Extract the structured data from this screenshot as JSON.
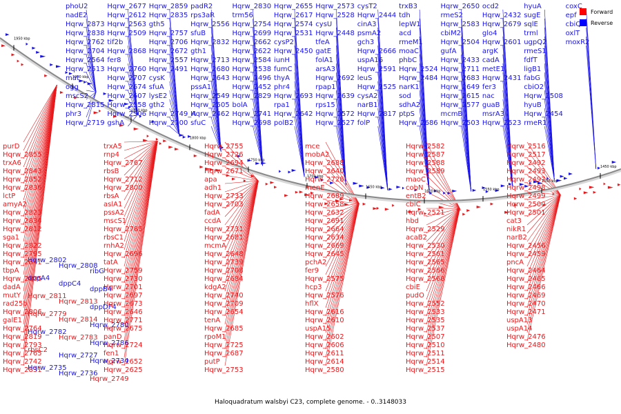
{
  "diagram": {
    "caption": "Haloquadratum walsbyi C23, complete genome. - 0..3148033",
    "legend": [
      {
        "label": "Forward",
        "color": "#ff0000"
      },
      {
        "label": "Reverse",
        "color": "#0000ff"
      }
    ],
    "colors": {
      "forward": "#e8191c",
      "reverse": "#1a14e8",
      "backbone": "#888888"
    },
    "ticks": [
      "1950 kbp",
      "1900 kbp",
      "1850 kbp",
      "1800 kbp",
      "1750 kbp",
      "1700 kbp",
      "1650 kbp",
      "1600 kbp",
      "1550 kbp",
      "1500 kbp",
      "1450 kbp"
    ],
    "reverse_labels": [
      "phoU2",
      "nadE2",
      "Hqrw_2873",
      "Hqrw_2838",
      "Hqrw_2762",
      "Hqrw_2704",
      "Hqrw_2564",
      "Hqrw_2513",
      "mat",
      "ogg",
      "mscS2",
      "Hqrw_2815",
      "phr3",
      "Hqrw_2719",
      "Hqrw_2677",
      "Hqrw_2612",
      "Hqrw_2563",
      "Hqrw_2509",
      "tif2b",
      "Hqrw_2868",
      "fer8",
      "Hqrw_2760",
      "Hqrw_2707",
      "Hqrw_2674",
      "Hqrw_2607",
      "Hqrw_2558",
      "Hqrw_2506",
      "gshA",
      "Hqrw_2859",
      "Hqrw_2835",
      "gth5",
      "Hqrw_2757",
      "Hqrw_2706",
      "Hqrw_2672",
      "Hqrw_2557",
      "Hqrw_2491",
      "cysK",
      "sfuA",
      "lysE2",
      "gth2",
      "Hqrw_2749_A",
      "Hqrw_2700",
      "padR2",
      "rps3aR",
      "Hqrw_2556",
      "sfuB",
      "Hqrw_2832",
      "gth1",
      "Hqrw_2713",
      "Hqrw_2680",
      "Hqrw_2643",
      "pssA1",
      "Hqrw_2549",
      "Hqrw_2505",
      "Hqrw_2462",
      "sfuC",
      "Hqrw_2830",
      "trm56",
      "Hqrw_2754",
      "Hqrw_2699",
      "Hqrw_2662",
      "Hqrw_2622",
      "Hqrw_2584",
      "Hqrw_2538",
      "Hqrw_2496",
      "Hqrw_2452",
      "Hqrw_2829",
      "bolA",
      "Hqrw_2741",
      "Hqrw_2698",
      "Hqrw_2655",
      "Hqrw_2617",
      "Hqrw_2574",
      "Hqrw_2531",
      "cysP2",
      "Hqrw_2450",
      "iunH",
      "fumC",
      "thyA",
      "phr4",
      "Hqrw_2693",
      "rpa1",
      "Hqrw_2642",
      "polB2",
      "Hqrw_2573",
      "Hqrw_2528",
      "cysU",
      "Hqrw_2448",
      "tfeA",
      "gatE",
      "folA1",
      "arsA3",
      "Hqrw_2692",
      "rpap1",
      "Hqrw_2639",
      "rps15",
      "Hqrw_2572",
      "Hqrw_2527",
      "cysT2",
      "Hqrw_2444",
      "cinA3",
      "psmA2",
      "gch3",
      "Hqrw_2666",
      "uspA16",
      "Hqrw_2591",
      "leuS",
      "Hqrw_2525",
      "cysA2",
      "narB1",
      "Hqrw_2817",
      "folP",
      "trxB3",
      "tdh",
      "lepW1",
      "acd",
      "rmeM1",
      "moaC",
      "phbC",
      "Hqrw_2524",
      "Hqrw_2484",
      "narK1",
      "sod",
      "sdhA2",
      "ptpS",
      "Hqrw_2686",
      "Hqrw_2650",
      "rmeS2",
      "Hqrw_2583",
      "cbiM2",
      "Hqrw_2504",
      "gufA",
      "Hqrw_2433",
      "Hqrw_2711",
      "Hqrw_2683",
      "Hqrw_2649",
      "Hqrw_2615",
      "Hqrw_2577",
      "mcmB",
      "Hqrw_2503",
      "ocd2",
      "Hqrw_2432",
      "Hqrw_2679",
      "glo4",
      "Hqrw_2601",
      "argK",
      "cadA",
      "metE1",
      "Hqrw_2431",
      "fer3",
      "nac",
      "guaB",
      "msrA3",
      "Hqrw_2523",
      "hyuA",
      "sugE",
      "sqlE",
      "trml",
      "ugpQ2",
      "rmeS1",
      "fdfT",
      "ligB1",
      "fabG",
      "cbiO2",
      "Hqrw_2508",
      "hyuB",
      "Hqrw_2454",
      "rmeR1",
      "coxC",
      "epf",
      "cbiQ2",
      "oxlT",
      "moxR2"
    ],
    "forward_labels": [
      "purD",
      "Hqrw_2855",
      "trxA6",
      "Hqrw_2843",
      "Hqrw_2852",
      "Hqrw_2836",
      "lctP",
      "amyA2",
      "Hqrw_2823",
      "Hqrw_2834",
      "Hqrw_2812",
      "sga1",
      "Hqrw_2822",
      "Hqrw_2795",
      "Hqrw_2841",
      "tbpA",
      "Hqrw_2805",
      "dadA",
      "mutY",
      "rad25b",
      "Hqrw_2806",
      "galE1",
      "Hqrw_2764",
      "Hqrw_2819",
      "Hqrw_2793",
      "Hqrw_2765",
      "Hqrw_2742",
      "Hqrw_2831",
      "trxA5",
      "rnp4",
      "Hqrw_2767",
      "rbsB",
      "Hqrw_2712",
      "Hqrw_2800",
      "rbsA",
      "aslA1",
      "pssA2",
      "mscS1",
      "Hqrw_2785",
      "rbsC1",
      "rnhA2",
      "Hqrw_2696",
      "tatA",
      "Hqrw_2759",
      "Hqrw_2730",
      "Hqrw_2701",
      "Hqrw_2697",
      "Hqrw_2673",
      "Hqrw_2646",
      "Hqrw_2771",
      "Hqrw_2675",
      "panD",
      "Hqrw_2724",
      "fen1",
      "Hqrw_2652",
      "Hqrw_2625",
      "Hqrw_2755",
      "Hqrw_2726",
      "Hqrw_2694",
      "Hqrw_2671",
      "apa",
      "adh1",
      "Hqrw_2733",
      "Hqrw_2703",
      "fadA",
      "ccdA",
      "Hqrw_2731",
      "Hqrw_2681",
      "mcmA",
      "Hqrw_2648",
      "Hqrw_2739",
      "Hqrw_2708",
      "Hqrw_2684",
      "kdgA2",
      "Hqrw_2740",
      "Hqrw_2709",
      "Hqrw_2654",
      "tenA",
      "Hqrw_2685",
      "rpoM1",
      "Hqrw_2725",
      "Hqrw_2687",
      "putP",
      "Hqrw_2753",
      "mce",
      "mobA2",
      "Hqrw_2688",
      "Hqrw_2640",
      "Hqrw_2728",
      "menE",
      "Hqrw_2689",
      "Hqrw_2658",
      "Hqrw_2632",
      "Hqrw_2691",
      "Hqrw_2664",
      "Hqrw_2634",
      "Hqrw_2669",
      "Hqrw_2645",
      "pchA2",
      "fer9",
      "Hqrw_2575",
      "hcp3",
      "Hqrw_2576",
      "hflX",
      "Hqrw_2616",
      "Hqrw_2610",
      "uspA15",
      "Hqrw_2602",
      "Hqrw_2606",
      "Hqrw_2611",
      "Hqrw_2614",
      "Hqrw_2580",
      "Hqrw_2582",
      "Hqrw_2587",
      "Hqrw_2588",
      "Hqrw_2589",
      "maoC",
      "cobN",
      "entB2",
      "cbiC",
      "Hqrw_2521",
      "hbd",
      "Hqrw_2529",
      "acaB2",
      "Hqrw_2530",
      "Hqrw_2561",
      "Hqrw_2565",
      "Hqrw_2566",
      "Hqrw_2568",
      "cbiE",
      "pudO",
      "Hqrw_2552",
      "Hqrw_2533",
      "Hqrw_2535",
      "Hqrw_2537",
      "Hqrw_2507",
      "Hqrw_2510",
      "Hqrw_2511",
      "Hqrw_2514",
      "Hqrw_2515",
      "Hqrw_2516",
      "Hqrw_2517",
      "Hqrw_2492",
      "Hqrw_2493",
      "Hqrw_2497",
      "Hqrw_2498",
      "Hqrw_2499",
      "Hqrw_2500",
      "Hqrw_2501",
      "cat3",
      "nikR1",
      "narB2",
      "Hqrw_2456",
      "Hqrw_2459",
      "pncA",
      "Hqrw_2464",
      "Hqrw_2465",
      "Hqrw_2466",
      "Hqrw_2469",
      "Hqrw_2470",
      "Hqrw_2471",
      "uspA13",
      "uspA14",
      "Hqrw_2476",
      "Hqrw_2480"
    ],
    "left_edge_labels": [
      "Hqrw_2802",
      "Hqrw_2808",
      "ribG",
      "dppA4",
      "dppC4",
      "dppB4",
      "Hqrw_2811",
      "Hqrw_2813",
      "dppDF4",
      "Hqrw_2779",
      "Hqrw_2814",
      "Hqrw_2780",
      "Hqrw_2782",
      "Hqrw_2783",
      "Hqrw_2786",
      "rbsC2",
      "Hqrw_2727",
      "Hqrw_2734",
      "Hqrw_2735",
      "Hqrw_2736",
      "Hqrw_2749"
    ]
  }
}
